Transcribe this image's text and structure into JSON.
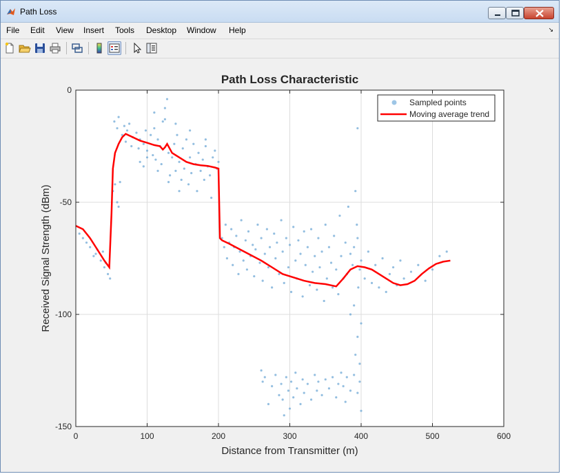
{
  "window": {
    "title": "Path Loss"
  },
  "menu": {
    "items": [
      "File",
      "Edit",
      "View",
      "Insert",
      "Tools",
      "Desktop",
      "Window",
      "Help"
    ]
  },
  "toolbar": {
    "buttons": [
      "new-figure",
      "open-file",
      "save-figure",
      "print-figure",
      "link-plot",
      "insert-colorbar",
      "insert-legend",
      "edit-plot",
      "open-property-inspector"
    ]
  },
  "chart_data": {
    "type": "scatter",
    "title": "Path Loss Characteristic",
    "xlabel": "Distance from Transmitter (m)",
    "ylabel": "Received Signal Strength (dBm)",
    "xlim": [
      0,
      600
    ],
    "ylim": [
      -150,
      0
    ],
    "xticks": [
      "0",
      "100",
      "200",
      "300",
      "400",
      "500",
      "600"
    ],
    "yticks": [
      "0",
      "-50",
      "-100",
      "-150"
    ],
    "grid": true,
    "legend_position": "top-right",
    "colors": {
      "points": "#6fa8d6",
      "trend": "#ff0000"
    },
    "series": [
      {
        "name": "Sampled points",
        "kind": "scatter",
        "points": [
          [
            5,
            -64
          ],
          [
            10,
            -66
          ],
          [
            15,
            -68
          ],
          [
            20,
            -70
          ],
          [
            28,
            -73
          ],
          [
            35,
            -76
          ],
          [
            40,
            -79
          ],
          [
            45,
            -82
          ],
          [
            48,
            -84
          ],
          [
            38,
            -72
          ],
          [
            30,
            -71
          ],
          [
            25,
            -74
          ],
          [
            42,
            -77
          ],
          [
            52,
            -45
          ],
          [
            55,
            -42
          ],
          [
            58,
            -50
          ],
          [
            60,
            -52
          ],
          [
            62,
            -41
          ],
          [
            54,
            -14
          ],
          [
            58,
            -17
          ],
          [
            60,
            -12
          ],
          [
            65,
            -20
          ],
          [
            68,
            -16
          ],
          [
            70,
            -23
          ],
          [
            72,
            -18
          ],
          [
            75,
            -15
          ],
          [
            78,
            -25
          ],
          [
            80,
            -21
          ],
          [
            85,
            -19
          ],
          [
            88,
            -26
          ],
          [
            90,
            -22
          ],
          [
            95,
            -24
          ],
          [
            98,
            -18
          ],
          [
            100,
            -27
          ],
          [
            105,
            -20
          ],
          [
            108,
            -29
          ],
          [
            110,
            -17
          ],
          [
            112,
            -31
          ],
          [
            115,
            -22
          ],
          [
            118,
            -25
          ],
          [
            120,
            -33
          ],
          [
            122,
            -14
          ],
          [
            125,
            -8
          ],
          [
            128,
            -4
          ],
          [
            130,
            -28
          ],
          [
            132,
            -38
          ],
          [
            135,
            -30
          ],
          [
            138,
            -24
          ],
          [
            140,
            -36
          ],
          [
            142,
            -20
          ],
          [
            145,
            -32
          ],
          [
            148,
            -40
          ],
          [
            150,
            -26
          ],
          [
            152,
            -35
          ],
          [
            155,
            -22
          ],
          [
            158,
            -42
          ],
          [
            160,
            -30
          ],
          [
            162,
            -37
          ],
          [
            165,
            -24
          ],
          [
            168,
            -33
          ],
          [
            170,
            -45
          ],
          [
            172,
            -28
          ],
          [
            175,
            -36
          ],
          [
            178,
            -31
          ],
          [
            180,
            -40
          ],
          [
            182,
            -25
          ],
          [
            185,
            -34
          ],
          [
            188,
            -38
          ],
          [
            190,
            -48
          ],
          [
            192,
            -30
          ],
          [
            195,
            -27
          ],
          [
            198,
            -35
          ],
          [
            200,
            -32
          ],
          [
            110,
            -10
          ],
          [
            125,
            -13
          ],
          [
            140,
            -15
          ],
          [
            160,
            -18
          ],
          [
            182,
            -22
          ],
          [
            100,
            -30
          ],
          [
            90,
            -32
          ],
          [
            95,
            -34
          ],
          [
            115,
            -36
          ],
          [
            130,
            -41
          ],
          [
            145,
            -45
          ],
          [
            205,
            -66
          ],
          [
            208,
            -70
          ],
          [
            210,
            -60
          ],
          [
            212,
            -75
          ],
          [
            215,
            -68
          ],
          [
            218,
            -62
          ],
          [
            220,
            -78
          ],
          [
            222,
            -70
          ],
          [
            225,
            -65
          ],
          [
            228,
            -82
          ],
          [
            230,
            -72
          ],
          [
            232,
            -58
          ],
          [
            235,
            -76
          ],
          [
            238,
            -67
          ],
          [
            240,
            -80
          ],
          [
            242,
            -63
          ],
          [
            245,
            -74
          ],
          [
            248,
            -69
          ],
          [
            250,
            -83
          ],
          [
            252,
            -71
          ],
          [
            255,
            -60
          ],
          [
            258,
            -77
          ],
          [
            260,
            -66
          ],
          [
            262,
            -85
          ],
          [
            265,
            -73
          ],
          [
            268,
            -62
          ],
          [
            270,
            -79
          ],
          [
            272,
            -70
          ],
          [
            275,
            -88
          ],
          [
            278,
            -64
          ],
          [
            280,
            -75
          ],
          [
            282,
            -68
          ],
          [
            285,
            -82
          ],
          [
            288,
            -58
          ],
          [
            290,
            -72
          ],
          [
            292,
            -86
          ],
          [
            295,
            -66
          ],
          [
            298,
            -79
          ],
          [
            300,
            -69
          ],
          [
            302,
            -90
          ],
          [
            305,
            -61
          ],
          [
            308,
            -76
          ],
          [
            310,
            -84
          ],
          [
            312,
            -67
          ],
          [
            315,
            -73
          ],
          [
            318,
            -92
          ],
          [
            320,
            -63
          ],
          [
            322,
            -78
          ],
          [
            325,
            -70
          ],
          [
            328,
            -87
          ],
          [
            330,
            -62
          ],
          [
            332,
            -81
          ],
          [
            335,
            -74
          ],
          [
            338,
            -89
          ],
          [
            340,
            -66
          ],
          [
            342,
            -79
          ],
          [
            345,
            -72
          ],
          [
            348,
            -94
          ],
          [
            350,
            -60
          ],
          [
            352,
            -84
          ],
          [
            355,
            -70
          ],
          [
            358,
            -77
          ],
          [
            360,
            -88
          ],
          [
            362,
            -65
          ],
          [
            365,
            -80
          ],
          [
            368,
            -91
          ],
          [
            370,
            -56
          ],
          [
            372,
            -74
          ],
          [
            375,
            -84
          ],
          [
            378,
            -68
          ],
          [
            380,
            -82
          ],
          [
            382,
            -52
          ],
          [
            385,
            -73
          ],
          [
            388,
            -78
          ],
          [
            390,
            -70
          ],
          [
            392,
            -45
          ],
          [
            395,
            -66
          ],
          [
            398,
            -80
          ],
          [
            400,
            -76
          ],
          [
            405,
            -84
          ],
          [
            410,
            -72
          ],
          [
            415,
            -86
          ],
          [
            420,
            -78
          ],
          [
            425,
            -88
          ],
          [
            430,
            -75
          ],
          [
            435,
            -90
          ],
          [
            440,
            -82
          ],
          [
            445,
            -79
          ],
          [
            450,
            -87
          ],
          [
            455,
            -76
          ],
          [
            460,
            -84
          ],
          [
            470,
            -81
          ],
          [
            480,
            -78
          ],
          [
            490,
            -85
          ],
          [
            500,
            -80
          ],
          [
            510,
            -74
          ],
          [
            520,
            -72
          ],
          [
            395,
            -17
          ],
          [
            260,
            -125
          ],
          [
            262,
            -130
          ],
          [
            265,
            -128
          ],
          [
            270,
            -140
          ],
          [
            275,
            -132
          ],
          [
            280,
            -127
          ],
          [
            285,
            -136
          ],
          [
            288,
            -131
          ],
          [
            290,
            -138
          ],
          [
            292,
            -145
          ],
          [
            295,
            -128
          ],
          [
            298,
            -134
          ],
          [
            300,
            -142
          ],
          [
            302,
            -130
          ],
          [
            305,
            -137
          ],
          [
            308,
            -126
          ],
          [
            310,
            -133
          ],
          [
            315,
            -140
          ],
          [
            318,
            -129
          ],
          [
            320,
            -135
          ],
          [
            325,
            -131
          ],
          [
            330,
            -138
          ],
          [
            335,
            -127
          ],
          [
            338,
            -134
          ],
          [
            340,
            -130
          ],
          [
            345,
            -136
          ],
          [
            350,
            -129
          ],
          [
            355,
            -133
          ],
          [
            360,
            -128
          ],
          [
            365,
            -137
          ],
          [
            368,
            -131
          ],
          [
            372,
            -126
          ],
          [
            375,
            -132
          ],
          [
            378,
            -139
          ],
          [
            380,
            -128
          ],
          [
            385,
            -134
          ],
          [
            390,
            -127
          ],
          [
            395,
            -135
          ],
          [
            398,
            -130
          ],
          [
            400,
            -143
          ],
          [
            385,
            -100
          ],
          [
            390,
            -96
          ],
          [
            395,
            -110
          ],
          [
            400,
            -104
          ],
          [
            392,
            -118
          ],
          [
            398,
            -122
          ],
          [
            396,
            -88
          ],
          [
            394,
            -60
          ]
        ]
      },
      {
        "name": "Moving average trend",
        "kind": "line",
        "points": [
          [
            0,
            -60.5
          ],
          [
            10,
            -62
          ],
          [
            20,
            -66
          ],
          [
            30,
            -71
          ],
          [
            40,
            -76
          ],
          [
            47,
            -79
          ],
          [
            50,
            -55
          ],
          [
            52,
            -35
          ],
          [
            55,
            -28
          ],
          [
            60,
            -24
          ],
          [
            65,
            -21
          ],
          [
            70,
            -19.5
          ],
          [
            80,
            -21
          ],
          [
            90,
            -22.5
          ],
          [
            100,
            -23.5
          ],
          [
            110,
            -24.5
          ],
          [
            118,
            -25
          ],
          [
            122,
            -26.5
          ],
          [
            125,
            -25.5
          ],
          [
            128,
            -24
          ],
          [
            135,
            -28
          ],
          [
            145,
            -30
          ],
          [
            155,
            -32
          ],
          [
            165,
            -33
          ],
          [
            175,
            -33.5
          ],
          [
            185,
            -33.8
          ],
          [
            195,
            -34.5
          ],
          [
            200,
            -35
          ],
          [
            202,
            -66
          ],
          [
            205,
            -67
          ],
          [
            215,
            -68.5
          ],
          [
            230,
            -71
          ],
          [
            245,
            -73.5
          ],
          [
            260,
            -76
          ],
          [
            275,
            -79
          ],
          [
            290,
            -82
          ],
          [
            305,
            -83.5
          ],
          [
            320,
            -85
          ],
          [
            335,
            -86
          ],
          [
            350,
            -86.5
          ],
          [
            365,
            -87.5
          ],
          [
            375,
            -84
          ],
          [
            385,
            -80
          ],
          [
            395,
            -78.5
          ],
          [
            405,
            -79
          ],
          [
            415,
            -80
          ],
          [
            425,
            -82
          ],
          [
            435,
            -84
          ],
          [
            445,
            -86
          ],
          [
            455,
            -87
          ],
          [
            465,
            -86.5
          ],
          [
            475,
            -85
          ],
          [
            485,
            -82
          ],
          [
            495,
            -79.5
          ],
          [
            505,
            -77.5
          ],
          [
            515,
            -76.5
          ],
          [
            525,
            -76
          ]
        ]
      }
    ]
  }
}
